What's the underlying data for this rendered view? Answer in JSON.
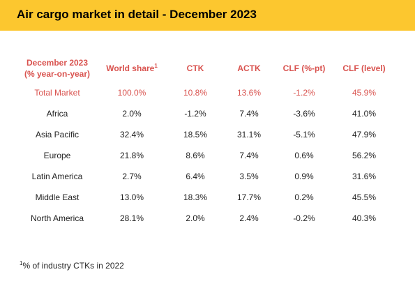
{
  "header": {
    "title": "Air cargo market in detail - December 2023"
  },
  "table": {
    "columns": [
      {
        "line1": "December 2023",
        "line2": "(% year-on-year)"
      },
      {
        "label": "World share",
        "sup": "1"
      },
      {
        "label": "CTK"
      },
      {
        "label": "ACTK"
      },
      {
        "label": "CLF (%-pt)"
      },
      {
        "label": "CLF (level)"
      }
    ],
    "rows": [
      [
        "Total Market",
        "100.0%",
        "10.8%",
        "13.6%",
        "-1.2%",
        "45.9%"
      ],
      [
        "Africa",
        "2.0%",
        "-1.2%",
        "7.4%",
        "-3.6%",
        "41.0%"
      ],
      [
        "Asia Pacific",
        "32.4%",
        "18.5%",
        "31.1%",
        "-5.1%",
        "47.9%"
      ],
      [
        "Europe",
        "21.8%",
        "8.6%",
        "7.4%",
        "0.6%",
        "56.2%"
      ],
      [
        "Latin America",
        "2.7%",
        "6.4%",
        "3.5%",
        "0.9%",
        "31.6%"
      ],
      [
        "Middle East",
        "13.0%",
        "18.3%",
        "17.7%",
        "0.2%",
        "45.5%"
      ],
      [
        "North America",
        "28.1%",
        "2.0%",
        "2.4%",
        "-0.2%",
        "40.3%"
      ]
    ]
  },
  "footnote": {
    "sup": "1",
    "text": "% of industry CTKs in 2022"
  },
  "colors": {
    "header_bg": "#fcc72f",
    "accent": "#d9534f"
  }
}
